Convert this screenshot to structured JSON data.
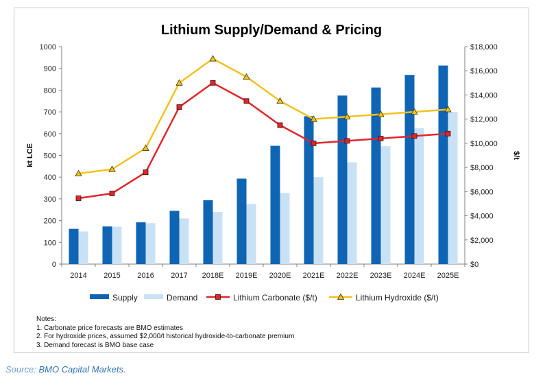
{
  "chart_data": {
    "type": "bar",
    "title": "Lithium Supply/Demand & Pricing",
    "categories": [
      "2014",
      "2015",
      "2016",
      "2017",
      "2018E",
      "2019E",
      "2020E",
      "2021E",
      "2022E",
      "2023E",
      "2024E",
      "2025E"
    ],
    "ylabel_left": "kt LCE",
    "ylabel_right": "$/t",
    "ylim_left": [
      0,
      1000
    ],
    "ylim_right": [
      0,
      18000
    ],
    "yticks_left": [
      "0",
      "100",
      "200",
      "300",
      "400",
      "500",
      "600",
      "700",
      "800",
      "900",
      "1000"
    ],
    "yticks_right": [
      "$0",
      "$2,000",
      "$4,000",
      "$6,000",
      "$8,000",
      "$10,000",
      "$12,000",
      "$14,000",
      "$16,000",
      "$18,000"
    ],
    "series": [
      {
        "name": "Supply",
        "type": "bar",
        "axis": "left",
        "color": "#0f65b4",
        "values": [
          162,
          173,
          192,
          245,
          294,
          393,
          544,
          680,
          775,
          812,
          870,
          913
        ]
      },
      {
        "name": "Demand",
        "type": "bar",
        "axis": "left",
        "color": "#c9e1f4",
        "values": [
          150,
          172,
          188,
          210,
          240,
          276,
          327,
          400,
          468,
          542,
          625,
          700
        ]
      },
      {
        "name": "Lithium Carbonate ($/t)",
        "type": "line",
        "axis": "right",
        "color": "#e0262a",
        "marker": "square",
        "values": [
          5450,
          5850,
          7600,
          13000,
          15000,
          13500,
          11500,
          10000,
          10200,
          10400,
          10600,
          10800
        ]
      },
      {
        "name": "Lithium Hydroxide ($/t)",
        "type": "line",
        "axis": "right",
        "color": "#f2c21d",
        "marker": "triangle",
        "values": [
          7500,
          7850,
          9600,
          15000,
          17000,
          15500,
          13500,
          12000,
          12200,
          12400,
          12600,
          12800
        ]
      }
    ],
    "legend": "bottom",
    "grid": false
  },
  "notes": {
    "heading": "Notes:",
    "lines": [
      "1. Carbonate price forecasts are BMO estimates",
      "2. For hydroxide prices, assumed $2,000/t historical hydroxide-to-carbonate premium",
      "3. Demand forecast is BMO base case"
    ]
  },
  "source": {
    "label": "Source:",
    "text": "BMO Capital Markets."
  }
}
